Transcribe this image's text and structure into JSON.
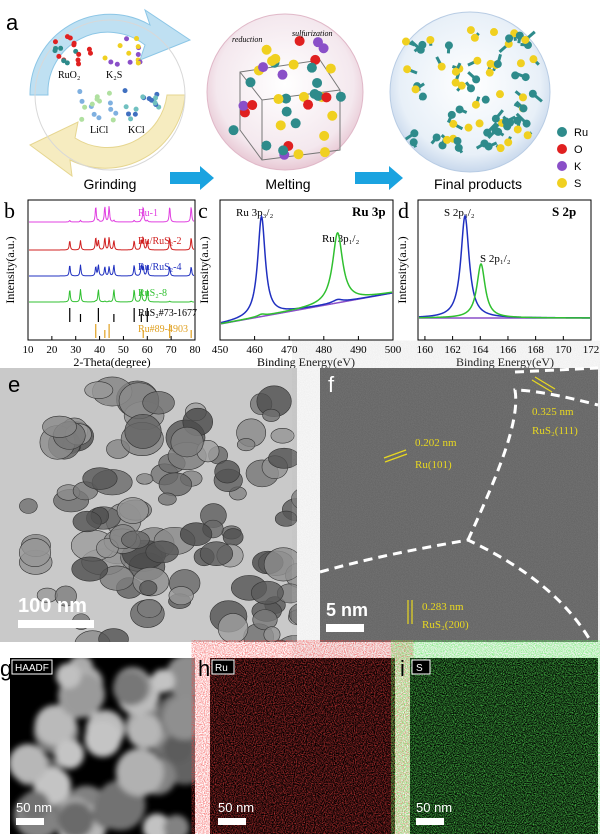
{
  "panel_a": {
    "label": "a",
    "materials": [
      "RuO₂",
      "K₂S",
      "LiCl",
      "KCl"
    ],
    "arrows": [
      "reduction",
      "sulfurization"
    ],
    "steps": [
      "Grinding",
      "Melting",
      "Final products"
    ],
    "legend": [
      {
        "label": "Ru",
        "color": "#2e8b8b"
      },
      {
        "label": "O",
        "color": "#e02020"
      },
      {
        "label": "K",
        "color": "#8a4fc8"
      },
      {
        "label": "S",
        "color": "#f0d020"
      }
    ]
  },
  "panel_b": {
    "label": "b",
    "y_label": "Intensity(a.u.)",
    "x_label": "2-Theta(degree)",
    "xlim": [
      10,
      80
    ],
    "xticks": [
      10,
      20,
      30,
      40,
      50,
      60,
      70,
      80
    ],
    "traces": [
      {
        "name": "Ru-1",
        "color": "#e040e0"
      },
      {
        "name": "Ru/RuS₂-2",
        "color": "#d02020"
      },
      {
        "name": "Ru/RuS₂-4",
        "color": "#2030c0"
      },
      {
        "name": "RuS₂-8",
        "color": "#30c030"
      },
      {
        "name": "RuS₂#73-1677",
        "color": "#000000"
      },
      {
        "name": "Ru#89-4903",
        "color": "#e0a020"
      }
    ]
  },
  "panel_c": {
    "label": "c",
    "title": "Ru 3p",
    "y_label": "Intensity(a.u.)",
    "x_label": "Binding Energy(eV)",
    "xlim": [
      450,
      500
    ],
    "xticks": [
      450,
      460,
      470,
      480,
      490,
      500
    ],
    "peaks": [
      "Ru 3p₃/₂",
      "Ru 3p₁/₂"
    ]
  },
  "panel_d": {
    "label": "d",
    "title": "S 2p",
    "y_label": "Intensity(a.u.)",
    "x_label": "Binding Energy(eV)",
    "xlim": [
      159.5,
      172
    ],
    "xticks": [
      160,
      162,
      164,
      166,
      168,
      170,
      172
    ],
    "peaks": [
      "S 2p₃/₂",
      "S 2p₁/₂"
    ]
  },
  "panel_e": {
    "label": "e",
    "scale": "100 nm"
  },
  "panel_f": {
    "label": "f",
    "annotations": [
      "0.202 nm",
      "Ru(101)",
      "0.325 nm",
      "RuS₂(111)",
      "0.283 nm",
      "RuS₂(200)"
    ],
    "scale": "5 nm"
  },
  "panel_g": {
    "label": "g",
    "tag": "HAADF",
    "scale": "50 nm"
  },
  "panel_h": {
    "label": "h",
    "tag": "Ru",
    "scale": "50 nm"
  },
  "panel_i": {
    "label": "i",
    "tag": "S",
    "scale": "50 nm"
  }
}
